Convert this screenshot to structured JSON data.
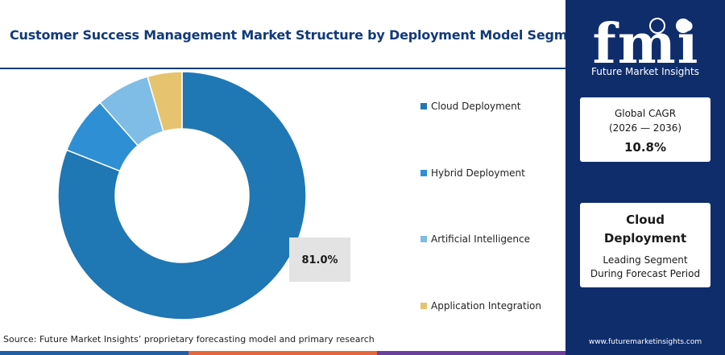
{
  "title": "Customer Success Management Market Structure by Deployment Model Segment",
  "source": "Source: Future Market Insights’ proprietary forecasting model and primary research",
  "brand": {
    "logo_text": "fmi",
    "tagline": "Future Market Insights",
    "website": "www.futuremarketinsights.com",
    "panel_color": "#0f2d6b"
  },
  "cagr_card": {
    "label_line1": "Global CAGR",
    "label_line2": "(2026 — 2036)",
    "value": "10.8%"
  },
  "leading_card": {
    "title_line1": "Cloud",
    "title_line2": "Deployment",
    "sub_line1": "Leading Segment",
    "sub_line2": "During Forecast Period"
  },
  "chart_data": {
    "type": "pie",
    "donut": true,
    "legend_position": "right",
    "categories": [
      "Cloud Deployment",
      "Hybrid Deployment",
      "Artificial Intelligence",
      "Application Integration"
    ],
    "values": [
      81.0,
      7.5,
      7.0,
      4.5
    ],
    "colors": [
      "#1f77b4",
      "#2f8fd4",
      "#7fbce6",
      "#e6c36e"
    ],
    "data_labels": [
      {
        "category": "Cloud Deployment",
        "text": "81.0%"
      }
    ]
  },
  "bottom_bar_colors": [
    "#1f5fa8",
    "#e8643c",
    "#6b3fa0"
  ]
}
